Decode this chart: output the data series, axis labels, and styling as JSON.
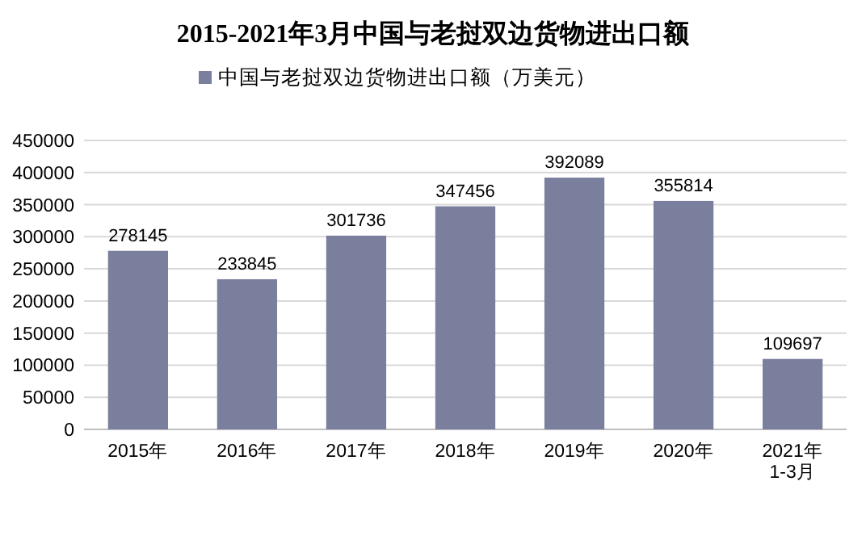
{
  "chart_data": {
    "type": "bar",
    "title": "2015-2021年3月中国与老挝双边货物进出口额",
    "categories": [
      "2015年",
      "2016年",
      "2017年",
      "2018年",
      "2019年",
      "2020年",
      "2021年\n1-3月"
    ],
    "series": [
      {
        "name": "中国与老挝双边货物进出口额（万美元）",
        "color": "#7a7f9d",
        "values": [
          278145,
          233845,
          301736,
          347456,
          392089,
          355814,
          109697
        ]
      }
    ],
    "ylim": [
      0,
      450000
    ],
    "yticks": [
      0,
      50000,
      100000,
      150000,
      200000,
      250000,
      300000,
      350000,
      400000,
      450000
    ],
    "grid": "y",
    "legend": "top",
    "data_labels": true
  }
}
